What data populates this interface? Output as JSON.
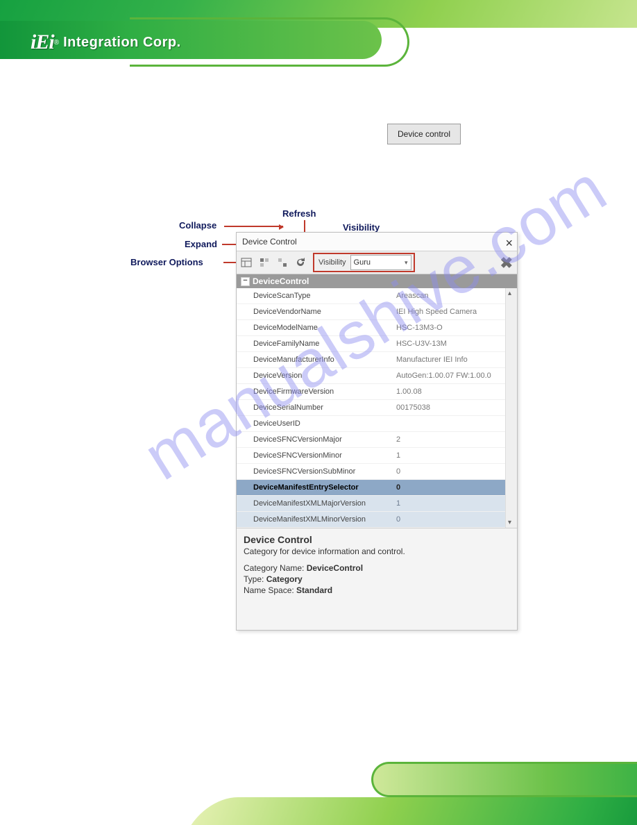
{
  "brand": {
    "logo_mark": "iEi",
    "registered": "®",
    "logo_text": "Integration Corp."
  },
  "dc_button": {
    "label": "Device control"
  },
  "callouts": {
    "refresh": "Refresh",
    "collapse": "Collapse",
    "expand": "Expand",
    "browser_options": "Browser Options",
    "visibility": "Visibility"
  },
  "window": {
    "title": "Device Control",
    "toolbar": {
      "visibility_label": "Visibility",
      "visibility_value": "Guru"
    },
    "category_header": "DeviceControl",
    "rows": [
      {
        "name": "DeviceScanType",
        "value": "Areascan"
      },
      {
        "name": "DeviceVendorName",
        "value": "IEI High Speed Camera"
      },
      {
        "name": "DeviceModelName",
        "value": "HSC-13M3-O"
      },
      {
        "name": "DeviceFamilyName",
        "value": "HSC-U3V-13M"
      },
      {
        "name": "DeviceManufacturerInfo",
        "value": "Manufacturer IEI Info"
      },
      {
        "name": "DeviceVersion",
        "value": "AutoGen:1.00.07 FW:1.00.0"
      },
      {
        "name": "DeviceFirmwareVersion",
        "value": "1.00.08"
      },
      {
        "name": "DeviceSerialNumber",
        "value": "00175038"
      },
      {
        "name": "DeviceUserID",
        "value": ""
      },
      {
        "name": "DeviceSFNCVersionMajor",
        "value": "2"
      },
      {
        "name": "DeviceSFNCVersionMinor",
        "value": "1"
      },
      {
        "name": "DeviceSFNCVersionSubMinor",
        "value": "0"
      },
      {
        "name": "DeviceManifestEntrySelector",
        "value": "0",
        "selected": true
      },
      {
        "name": "DeviceManifestXMLMajorVersion",
        "value": "1",
        "shade": true
      },
      {
        "name": "DeviceManifestXMLMinorVersion",
        "value": "0",
        "shade": true
      }
    ],
    "info": {
      "heading": "Device Control",
      "description": "Category for device information and control.",
      "category_label": "Category Name:",
      "category_value": "DeviceControl",
      "type_label": "Type:",
      "type_value": "Category",
      "namespace_label": "Name Space:",
      "namespace_value": "Standard"
    }
  },
  "watermark": "manualshive.com",
  "colors": {
    "callout_text": "#101a5c",
    "arrow_red": "#c0392b",
    "selected_bg": "#8da8c6",
    "shade_bg": "#d9e3ed",
    "green_dark": "#0a8f38",
    "green_light": "#8fd04e",
    "watermark": "#8d8df0"
  }
}
